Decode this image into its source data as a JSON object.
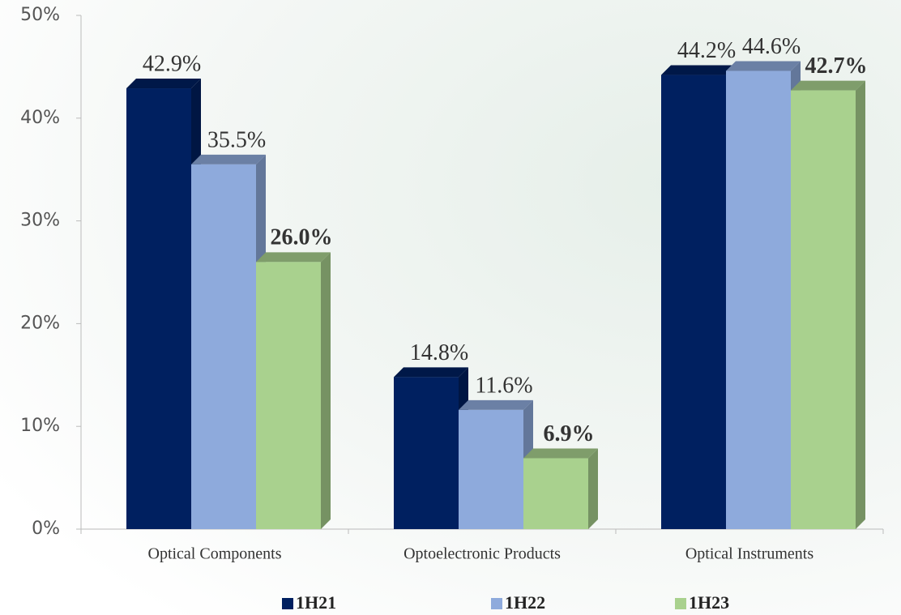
{
  "chart_data": {
    "type": "bar3d",
    "categories": [
      "Optical Components",
      "Optoelectronic Products",
      "Optical Instruments"
    ],
    "series": [
      {
        "name": "1H21",
        "color": "#002060",
        "values": [
          42.9,
          14.8,
          44.2
        ],
        "value_labels": [
          "42.9%",
          "14.8%",
          "44.2%"
        ]
      },
      {
        "name": "1H22",
        "color": "#8eaadc",
        "values": [
          35.5,
          11.6,
          44.6
        ],
        "value_labels": [
          "35.5%",
          "11.6%",
          "44.6%"
        ]
      },
      {
        "name": "1H23",
        "color": "#a9d18e",
        "values": [
          26.0,
          6.9,
          42.7
        ],
        "value_labels": [
          "26.0%",
          "6.9%",
          "42.7%"
        ]
      }
    ],
    "ylim": [
      0,
      50
    ],
    "yticks": [
      {
        "value": 0,
        "label": "0%"
      },
      {
        "value": 10,
        "label": "10%"
      },
      {
        "value": 20,
        "label": "20%"
      },
      {
        "value": 30,
        "label": "30%"
      },
      {
        "value": 40,
        "label": "40%"
      },
      {
        "value": 50,
        "label": "50%"
      }
    ],
    "legend": "bottom"
  }
}
